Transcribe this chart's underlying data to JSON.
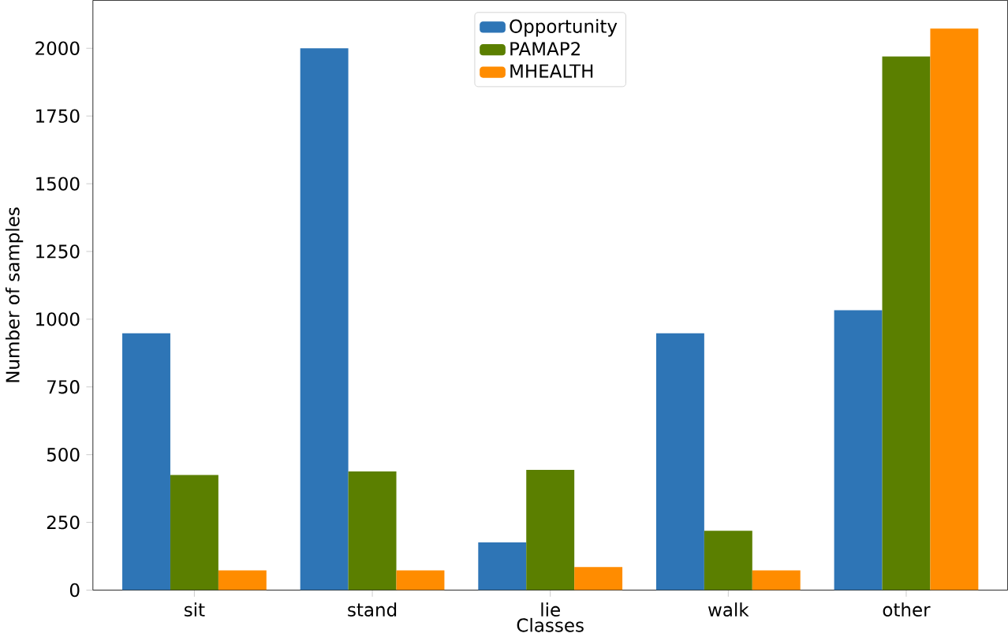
{
  "chart_data": {
    "type": "bar",
    "xlabel": "Classes",
    "ylabel": "Number of samples",
    "categories": [
      "sit",
      "stand",
      "lie",
      "walk",
      "other"
    ],
    "series": [
      {
        "name": "Opportunity",
        "color": "#2e75b6",
        "values": [
          948,
          2000,
          176,
          948,
          1033
        ]
      },
      {
        "name": "PAMAP2",
        "color": "#5b7f00",
        "values": [
          425,
          438,
          444,
          219,
          1970
        ]
      },
      {
        "name": "MHEALTH",
        "color": "#ff8c00",
        "values": [
          73,
          73,
          85,
          73,
          2073
        ]
      }
    ],
    "ylim": [
      0,
      2177
    ],
    "yticks": [
      0,
      250,
      500,
      750,
      1000,
      1250,
      1500,
      1750,
      2000
    ],
    "legend": "top"
  }
}
